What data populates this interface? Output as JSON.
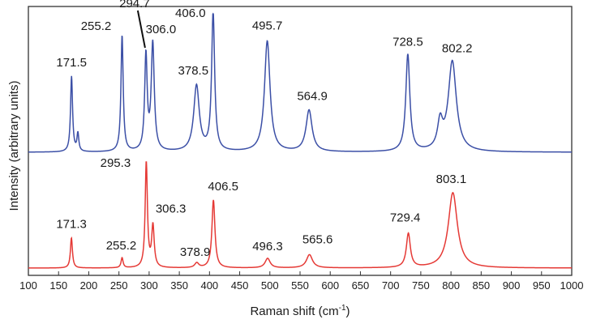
{
  "chart_data": {
    "type": "line",
    "xlabel": "Raman shift (cm",
    "xlabel_superscript": "-1",
    "xlabel_suffix": ")",
    "ylabel": "Intensity (arbitrary units)",
    "xlim": [
      100,
      1000
    ],
    "x_ticks": [
      100,
      150,
      200,
      250,
      300,
      350,
      400,
      450,
      500,
      550,
      600,
      650,
      700,
      750,
      800,
      850,
      900,
      950,
      1000
    ],
    "y_ticks_shown": false,
    "grid": false,
    "legend": "none",
    "series": [
      {
        "color": "#3b4fa6",
        "peaks": [
          {
            "x": 171.5,
            "height": 0.545,
            "width": 2.0,
            "label": "171.5"
          },
          {
            "x": 182.0,
            "height": 0.13,
            "width": 1.8,
            "label": ""
          },
          {
            "x": 255.2,
            "height": 0.84,
            "width": 2.2,
            "label": "255.2"
          },
          {
            "x": 294.7,
            "height": 0.685,
            "width": 2.5,
            "label": "294.7"
          },
          {
            "x": 306.0,
            "height": 0.775,
            "width": 3.0,
            "label": "306.0"
          },
          {
            "x": 378.5,
            "height": 0.475,
            "width": 5.5,
            "label": "378.5"
          },
          {
            "x": 406.0,
            "height": 1.0,
            "width": 3.0,
            "label": "406.0"
          },
          {
            "x": 495.7,
            "height": 0.8,
            "width": 5.5,
            "label": "495.7"
          },
          {
            "x": 564.9,
            "height": 0.3,
            "width": 6.0,
            "label": "564.9"
          },
          {
            "x": 728.5,
            "height": 0.7,
            "width": 4.0,
            "label": "728.5"
          },
          {
            "x": 782.0,
            "height": 0.19,
            "width": 5.0,
            "label": ""
          },
          {
            "x": 802.2,
            "height": 0.65,
            "width": 8.0,
            "label": "802.2"
          }
        ]
      },
      {
        "color": "#e53935",
        "peaks": [
          {
            "x": 171.3,
            "height": 0.285,
            "width": 2.0,
            "label": "171.3"
          },
          {
            "x": 255.2,
            "height": 0.095,
            "width": 2.0,
            "label": "255.2"
          },
          {
            "x": 295.3,
            "height": 1.0,
            "width": 2.2,
            "label": "295.3"
          },
          {
            "x": 306.3,
            "height": 0.39,
            "width": 2.5,
            "label": "306.3"
          },
          {
            "x": 378.9,
            "height": 0.045,
            "width": 4.0,
            "label": "378.9"
          },
          {
            "x": 406.5,
            "height": 0.64,
            "width": 3.0,
            "label": "406.5"
          },
          {
            "x": 496.3,
            "height": 0.09,
            "width": 5.0,
            "label": "496.3"
          },
          {
            "x": 565.6,
            "height": 0.125,
            "width": 6.0,
            "label": "565.6"
          },
          {
            "x": 729.4,
            "height": 0.32,
            "width": 4.0,
            "label": "729.4"
          },
          {
            "x": 803.1,
            "height": 0.71,
            "width": 9.0,
            "label": "803.1"
          }
        ]
      }
    ]
  }
}
